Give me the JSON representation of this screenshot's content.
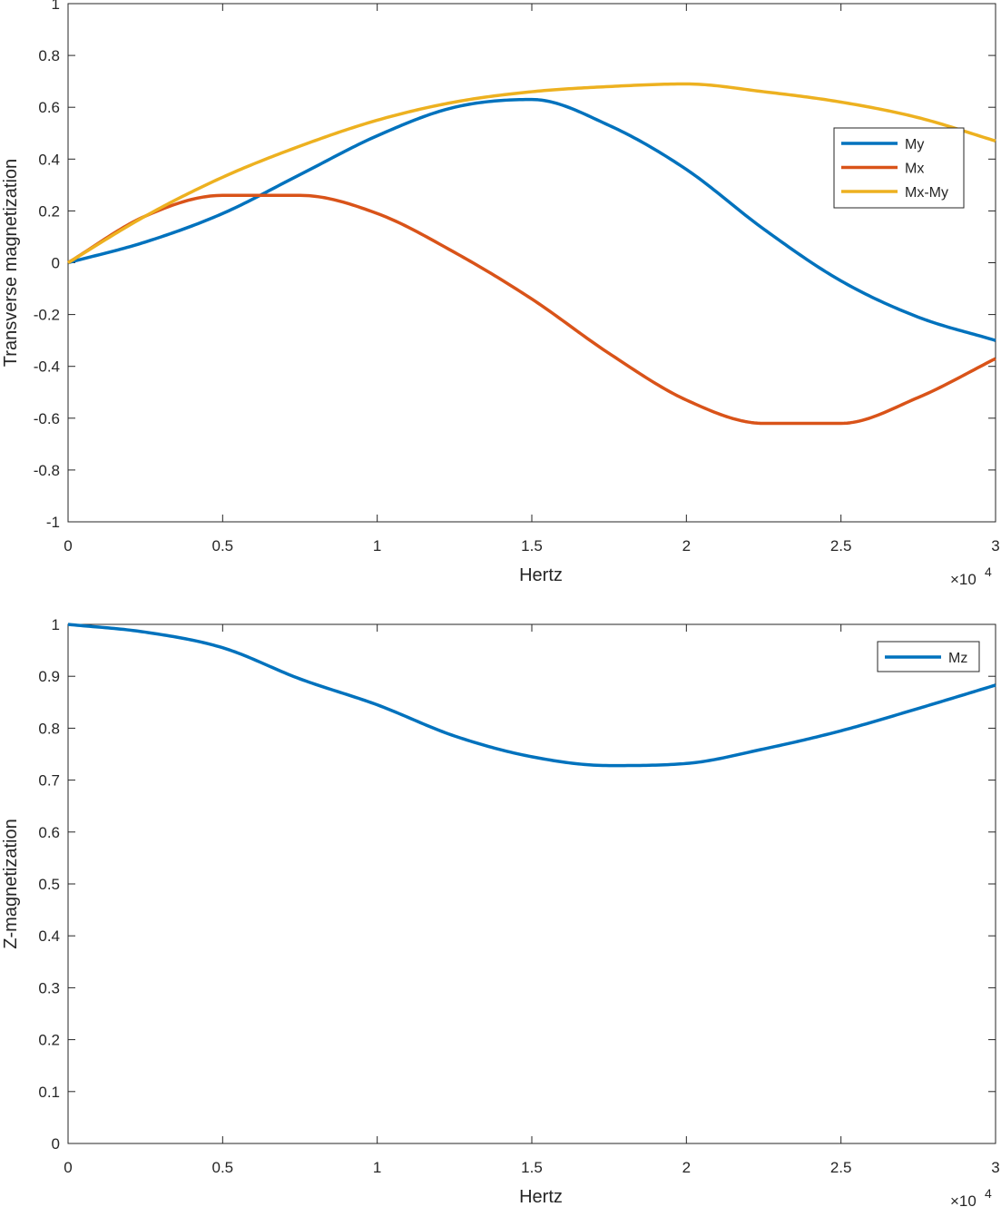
{
  "chart_data": [
    {
      "type": "line",
      "xlabel": "Hertz",
      "ylabel": "Transverse magnetization",
      "x_multiplier_label": "×10",
      "x_multiplier_exp": "4",
      "xlim": [
        0,
        30000
      ],
      "ylim": [
        -1,
        1
      ],
      "xticks": [
        0,
        5000,
        10000,
        15000,
        20000,
        25000,
        30000
      ],
      "xtick_labels": [
        "0",
        "0.5",
        "1",
        "1.5",
        "2",
        "2.5",
        "3"
      ],
      "yticks": [
        -1,
        -0.8,
        -0.6,
        -0.4,
        -0.2,
        0,
        0.2,
        0.4,
        0.6,
        0.8,
        1
      ],
      "ytick_labels": [
        "-1",
        "-0.8",
        "-0.6",
        "-0.4",
        "-0.2",
        "0",
        "0.2",
        "0.4",
        "0.6",
        "0.8",
        "1"
      ],
      "grid": false,
      "legend_position": "right",
      "x": [
        0,
        2500,
        5000,
        7500,
        10000,
        12500,
        15000,
        17500,
        20000,
        22500,
        25000,
        27500,
        30000
      ],
      "series": [
        {
          "name": "My",
          "color": "#0072BD",
          "values": [
            0,
            0.08,
            0.19,
            0.34,
            0.49,
            0.6,
            0.63,
            0.53,
            0.36,
            0.13,
            -0.07,
            -0.21,
            -0.3
          ]
        },
        {
          "name": "Mx",
          "color": "#D95319",
          "values": [
            0,
            0.18,
            0.26,
            0.26,
            0.19,
            0.04,
            -0.14,
            -0.35,
            -0.53,
            -0.62,
            -0.62,
            -0.52,
            -0.37
          ]
        },
        {
          "name": "Mx-My",
          "color": "#EDB120",
          "values": [
            0,
            0.18,
            0.33,
            0.45,
            0.55,
            0.62,
            0.66,
            0.68,
            0.69,
            0.66,
            0.62,
            0.56,
            0.47
          ]
        }
      ]
    },
    {
      "type": "line",
      "xlabel": "Hertz",
      "ylabel": "Z-magnetization",
      "x_multiplier_label": "×10",
      "x_multiplier_exp": "4",
      "xlim": [
        0,
        30000
      ],
      "ylim": [
        0,
        1
      ],
      "xticks": [
        0,
        5000,
        10000,
        15000,
        20000,
        25000,
        30000
      ],
      "xtick_labels": [
        "0",
        "0.5",
        "1",
        "1.5",
        "2",
        "2.5",
        "3"
      ],
      "yticks": [
        0,
        0.1,
        0.2,
        0.3,
        0.4,
        0.5,
        0.6,
        0.7,
        0.8,
        0.9,
        1
      ],
      "ytick_labels": [
        "0",
        "0.1",
        "0.2",
        "0.3",
        "0.4",
        "0.5",
        "0.6",
        "0.7",
        "0.8",
        "0.9",
        "1"
      ],
      "grid": false,
      "legend_position": "top-right",
      "x": [
        0,
        2500,
        5000,
        7500,
        10000,
        12500,
        15000,
        17500,
        20000,
        22500,
        25000,
        27500,
        30000
      ],
      "series": [
        {
          "name": "Mz",
          "color": "#0072BD",
          "values": [
            1.0,
            0.985,
            0.955,
            0.895,
            0.845,
            0.785,
            0.745,
            0.728,
            0.732,
            0.76,
            0.795,
            0.838,
            0.883
          ]
        }
      ]
    }
  ]
}
